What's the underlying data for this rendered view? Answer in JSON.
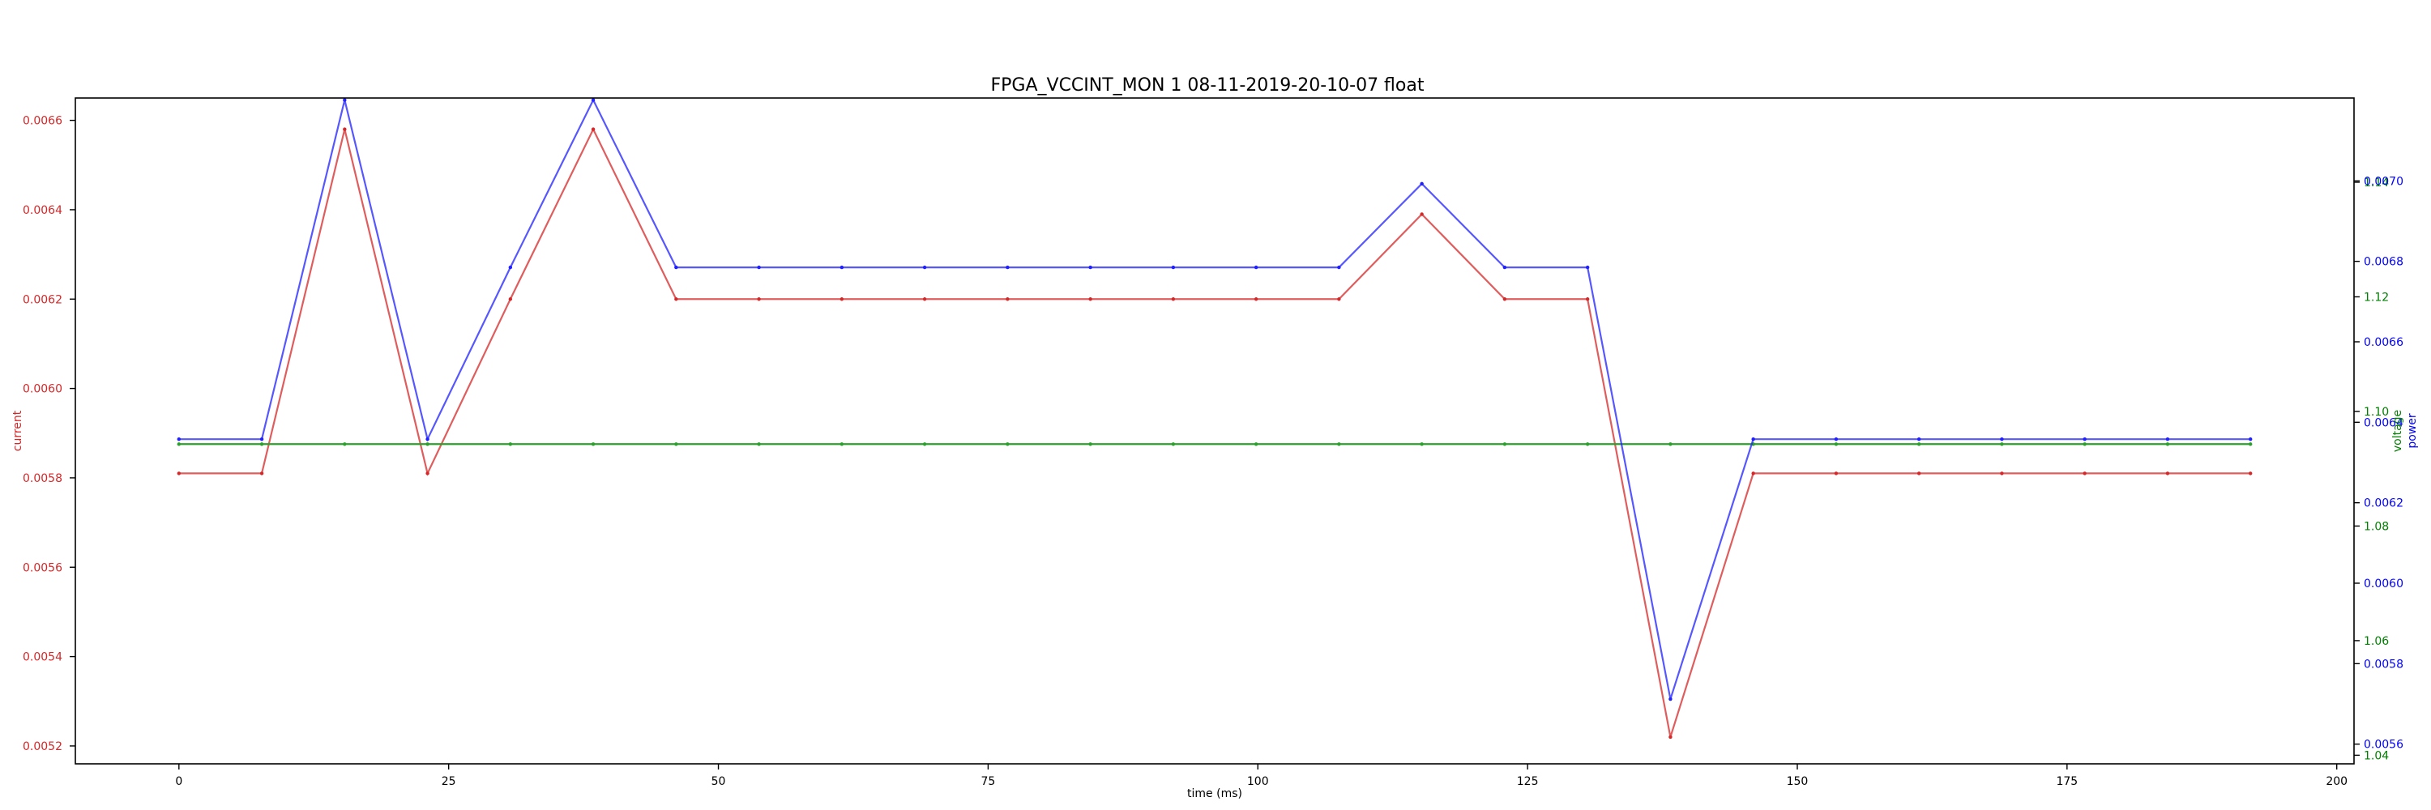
{
  "chart_data": {
    "type": "line",
    "title": "FPGA_VCCINT_MON   1   08-11-2019-20-10-07   float",
    "xlabel": "time (ms)",
    "xlim": [
      -9.6,
      201.6
    ],
    "xticks": [
      0,
      25,
      50,
      75,
      100,
      125,
      150,
      175,
      200
    ],
    "x": [
      0,
      7.68,
      15.36,
      23.04,
      30.72,
      38.4,
      46.08,
      53.76,
      61.44,
      69.12,
      76.8,
      84.48,
      92.16,
      99.84,
      107.52,
      115.2,
      122.88,
      130.56,
      138.24,
      145.92,
      153.6,
      161.28,
      168.96,
      176.64,
      184.32,
      192.0
    ],
    "axes": {
      "current": {
        "label": "current",
        "color": "#d62728",
        "ylim": [
          0.00516,
          0.00665
        ],
        "ticks": [
          0.0052,
          0.0054,
          0.0056,
          0.0058,
          0.006,
          0.0062,
          0.0064,
          0.0066
        ],
        "tick_labels": [
          "0.0052",
          "0.0054",
          "0.0056",
          "0.0058",
          "0.0060",
          "0.0062",
          "0.0064",
          "0.0066"
        ]
      },
      "voltage": {
        "label": "voltage",
        "color": "#008000",
        "ylim": [
          1.0385,
          1.1547
        ],
        "ticks": [
          1.04,
          1.06,
          1.08,
          1.1,
          1.12,
          1.14
        ],
        "tick_labels": [
          "1.04",
          "1.06",
          "1.08",
          "1.10",
          "1.12",
          "1.14"
        ]
      },
      "power": {
        "label": "power",
        "color": "#0000ff",
        "ylim": [
          0.005551,
          0.007206
        ],
        "ticks": [
          0.0056,
          0.0058,
          0.006,
          0.0062,
          0.0064,
          0.0066,
          0.0068,
          0.007
        ],
        "tick_labels": [
          "0.0056",
          "0.0058",
          "0.0060",
          "0.0062",
          "0.0064",
          "0.0066",
          "0.0068",
          "0.0070"
        ]
      }
    },
    "series": [
      {
        "name": "current",
        "axis": "current",
        "color": "#d62728",
        "values": [
          0.00581,
          0.00581,
          0.00658,
          0.00581,
          0.0062,
          0.00658,
          0.0062,
          0.0062,
          0.0062,
          0.0062,
          0.0062,
          0.0062,
          0.0062,
          0.0062,
          0.0062,
          0.00639,
          0.0062,
          0.0062,
          0.00522,
          0.00581,
          0.00581,
          0.00581,
          0.00581,
          0.00581,
          0.00581,
          0.00581
        ]
      },
      {
        "name": "voltage",
        "axis": "voltage",
        "color": "#2ca02c",
        "values": [
          1.0943,
          1.0943,
          1.0943,
          1.0943,
          1.0943,
          1.0943,
          1.0943,
          1.0943,
          1.0943,
          1.0943,
          1.0943,
          1.0943,
          1.0943,
          1.0943,
          1.0943,
          1.0943,
          1.0943,
          1.0943,
          1.0943,
          1.0943,
          1.0943,
          1.0943,
          1.0943,
          1.0943,
          1.0943,
          1.0943
        ]
      },
      {
        "name": "power",
        "axis": "power",
        "color": "#1f1fff",
        "values": [
          0.006358,
          0.006358,
          0.007201,
          0.006358,
          0.006785,
          0.007201,
          0.006785,
          0.006785,
          0.006785,
          0.006785,
          0.006785,
          0.006785,
          0.006785,
          0.006785,
          0.006785,
          0.006993,
          0.006785,
          0.006785,
          0.005712,
          0.006358,
          0.006358,
          0.006358,
          0.006358,
          0.006358,
          0.006358,
          0.006358
        ]
      }
    ]
  }
}
